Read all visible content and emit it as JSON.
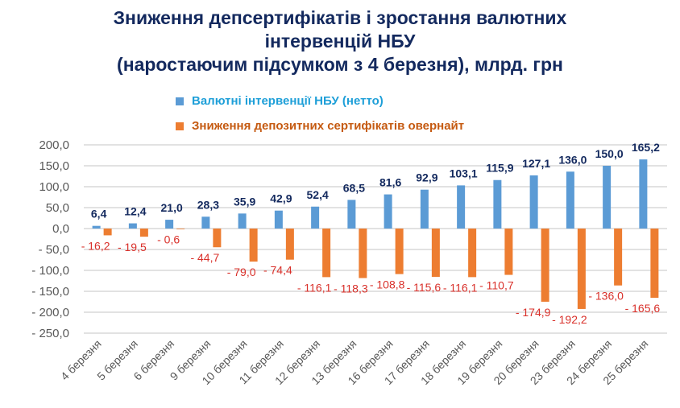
{
  "chart_data": {
    "type": "bar",
    "title_lines": [
      "Зниження депсертифікатів і зростання валютних",
      "інтервенцій НБУ",
      "(наростаючим підсумком з 4 березня), млрд. грн"
    ],
    "categories": [
      "4 березня",
      "5 березня",
      "6 березня",
      "9 березня",
      "10 березня",
      "11 березня",
      "12 березня",
      "13 березня",
      "16 березня",
      "17 березня",
      "18 березня",
      "19 березня",
      "20 березня",
      "23 березня",
      "24 березня",
      "25 березня"
    ],
    "series": [
      {
        "name": "Валютні інтервенції НБУ (нетто)",
        "color": "#5b9bd5",
        "label_color": "#13295e",
        "values": [
          6.4,
          12.4,
          21.0,
          28.3,
          35.9,
          42.9,
          52.4,
          68.5,
          81.6,
          92.9,
          103.1,
          115.9,
          127.1,
          136.0,
          150.0,
          165.2
        ]
      },
      {
        "name": "Зниження депозитних сертифікатів овернайт",
        "color": "#ed7d31",
        "label_color": "#d9302a",
        "values": [
          -16.2,
          -19.5,
          -0.6,
          -44.7,
          -79.0,
          -74.4,
          -116.1,
          -118.3,
          -108.8,
          -115.6,
          -116.1,
          -110.7,
          -174.9,
          -192.2,
          -136.0,
          -165.6
        ]
      }
    ],
    "ylim": [
      -250,
      200
    ],
    "yticks": [
      200,
      150,
      100,
      50,
      0,
      -50,
      -100,
      -150,
      -200,
      -250
    ],
    "ytick_labels": [
      "200,0",
      "150,0",
      "100,0",
      "50,0",
      "0,0",
      "- 50,0",
      "- 100,0",
      "- 150,0",
      "- 200,0",
      "- 250,0"
    ],
    "legend_colors": [
      "#1e9fd8",
      "#c55a11"
    ],
    "grid": true,
    "legend_position": "top"
  }
}
